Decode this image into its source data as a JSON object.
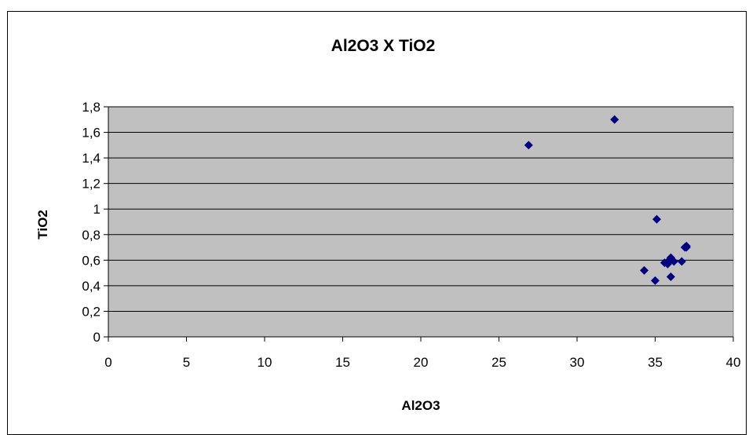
{
  "chart_data": {
    "type": "scatter",
    "title": "Al2O3 X TiO2",
    "xlabel": "Al2O3",
    "ylabel": "TiO2",
    "xlim": [
      0,
      40
    ],
    "ylim": [
      0,
      1.8
    ],
    "xticks": [
      "0",
      "5",
      "10",
      "15",
      "20",
      "25",
      "30",
      "35",
      "40"
    ],
    "yticks": [
      "0",
      "0,2",
      "0,4",
      "0,6",
      "0,8",
      "1",
      "1,2",
      "1,4",
      "1,6",
      "1,8"
    ],
    "grid": "horizontal",
    "legend": "none",
    "series": [
      {
        "points": [
          {
            "x": 26.9,
            "y": 1.5
          },
          {
            "x": 32.4,
            "y": 1.7
          },
          {
            "x": 35.1,
            "y": 0.92
          },
          {
            "x": 34.3,
            "y": 0.52
          },
          {
            "x": 35.0,
            "y": 0.44
          },
          {
            "x": 35.6,
            "y": 0.58
          },
          {
            "x": 35.8,
            "y": 0.57
          },
          {
            "x": 35.9,
            "y": 0.6
          },
          {
            "x": 36.0,
            "y": 0.62
          },
          {
            "x": 36.2,
            "y": 0.59
          },
          {
            "x": 36.0,
            "y": 0.47
          },
          {
            "x": 36.7,
            "y": 0.59
          },
          {
            "x": 36.9,
            "y": 0.7
          },
          {
            "x": 37.0,
            "y": 0.71
          },
          {
            "x": 37.0,
            "y": 0.7
          }
        ]
      }
    ]
  },
  "colors": {
    "plot_background": "#c0c0c0",
    "gridline": "#000000",
    "marker": "#000080"
  },
  "marker_shape": "diamond-icon"
}
